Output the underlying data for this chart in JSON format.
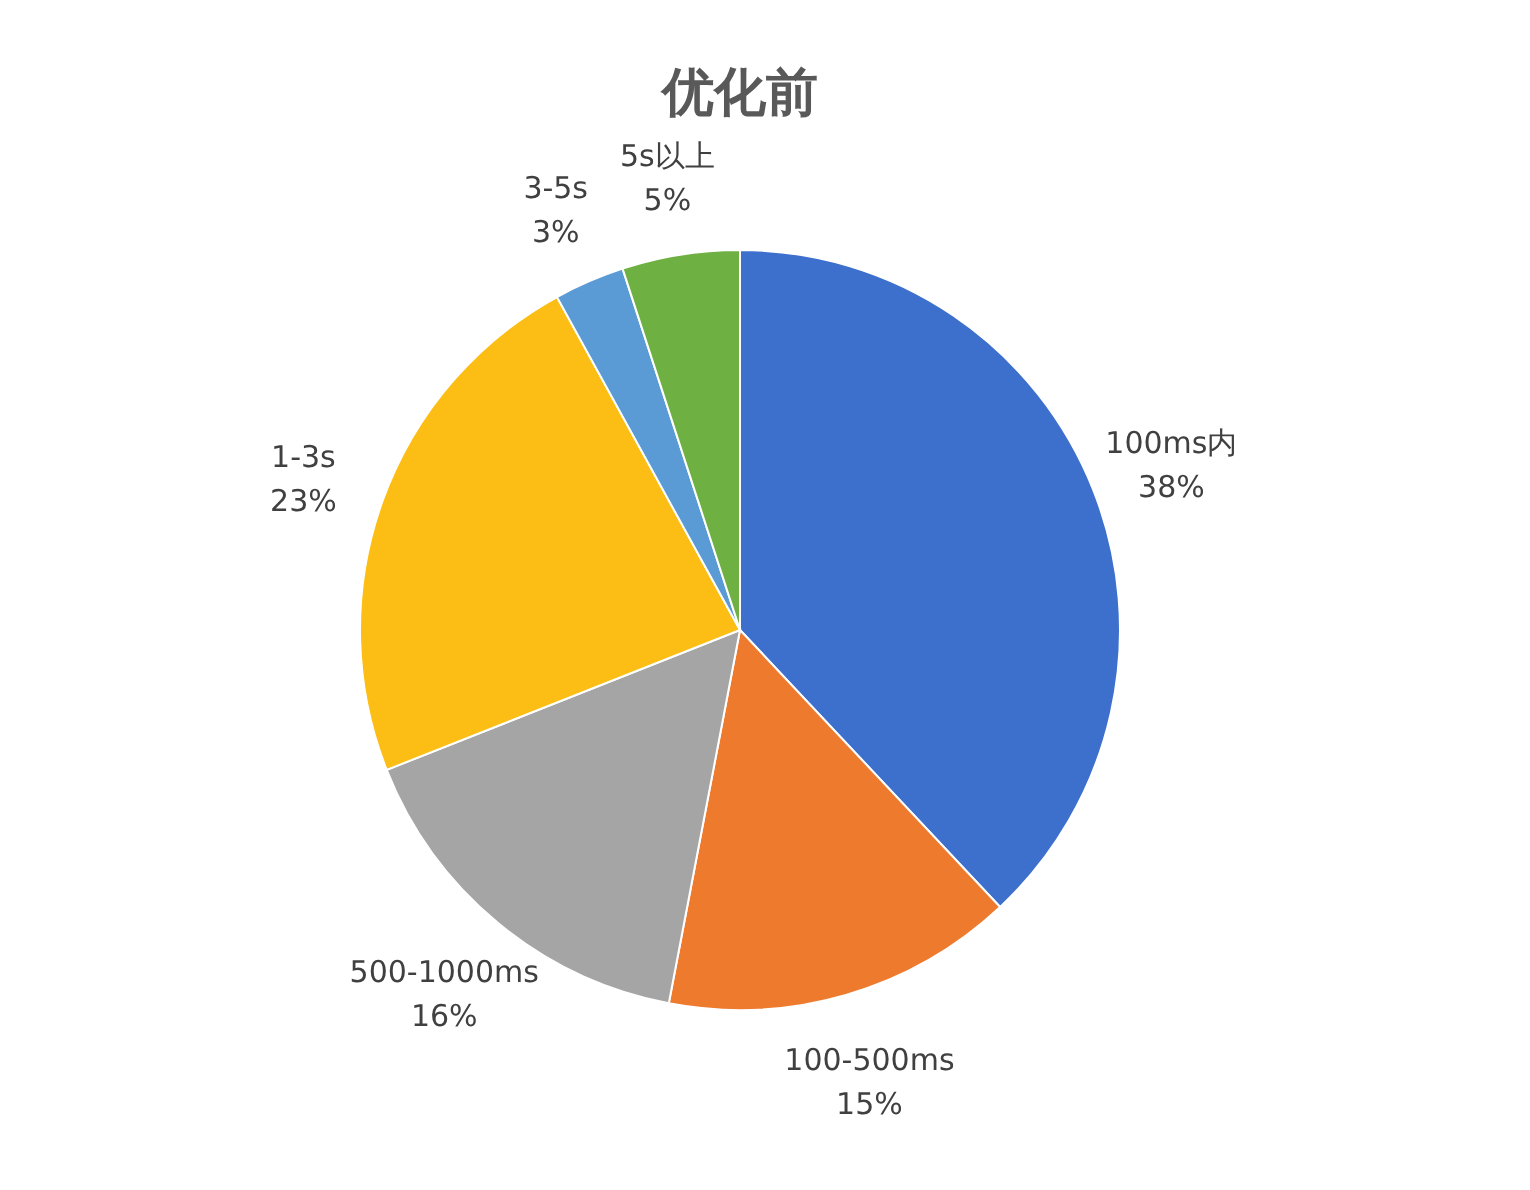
{
  "chart_data": {
    "type": "pie",
    "title": "优化前",
    "categories": [
      "100ms内",
      "100-500ms",
      "500-1000ms",
      "1-3s",
      "3-5s",
      "5s以上"
    ],
    "values": [
      38,
      15,
      16,
      23,
      3,
      5
    ],
    "value_labels": [
      "38%",
      "15%",
      "16%",
      "23%",
      "3%",
      "5%"
    ],
    "colors": [
      "#3d6fcc",
      "#ee7a2e",
      "#a5a5a5",
      "#fcbe14",
      "#5b9bd5",
      "#6fb043"
    ]
  }
}
